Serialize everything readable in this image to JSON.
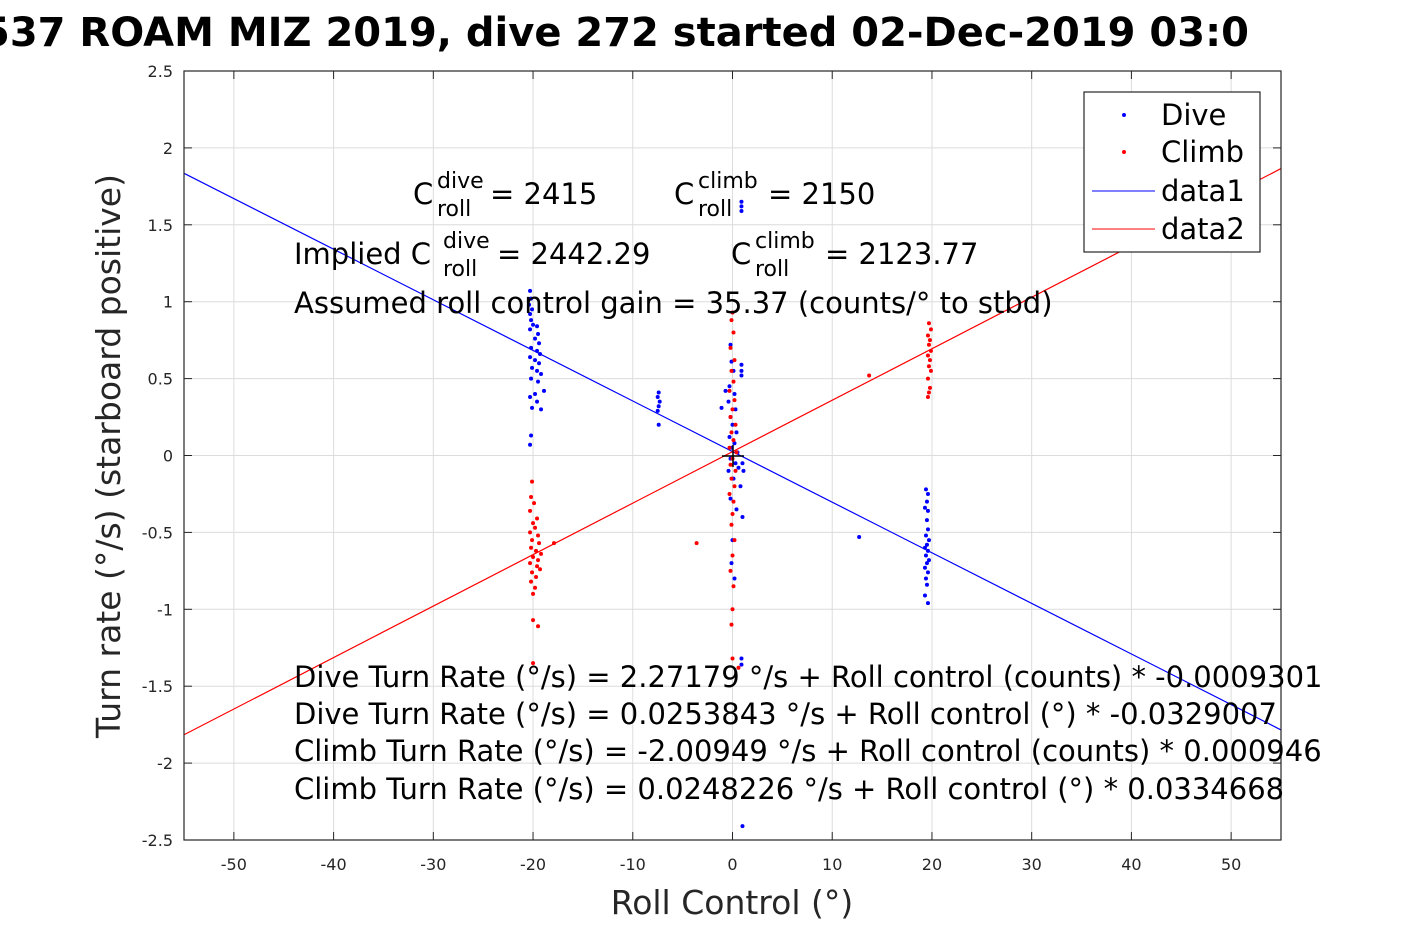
{
  "chart_data": {
    "type": "scatter",
    "title": "537 ROAM MIZ 2019, dive 272 started 02-Dec-2019 03:0",
    "xlabel": "Roll Control (°)",
    "ylabel": "Turn rate (°/s) (starboard positive)",
    "xlim": [
      -55,
      55
    ],
    "ylim": [
      -2.5,
      2.5
    ],
    "xticks": [
      -50,
      -40,
      -30,
      -20,
      -10,
      0,
      10,
      20,
      30,
      40,
      50
    ],
    "xtick_labels": [
      "-50",
      "-40",
      "-30",
      "-20",
      "-10",
      "0",
      "10",
      "20",
      "30",
      "40",
      "50"
    ],
    "yticks": [
      2.5,
      2,
      1.5,
      1,
      0.5,
      0,
      -0.5,
      -1,
      -1.5,
      -2,
      -2.5
    ],
    "ytick_labels": [
      "2.5",
      "2",
      "1.5",
      "1",
      "0.5",
      "0",
      "-0.5",
      "-1",
      "-1.5",
      "-2",
      "-2.5"
    ],
    "grid": true,
    "legend_position": "top-right",
    "series": [
      {
        "name": "Dive",
        "kind": "points",
        "color": "#0000ff",
        "points": [
          [
            -20.3,
            1.07
          ],
          [
            -20.2,
            1.02
          ],
          [
            -20.4,
            0.98
          ],
          [
            -20.1,
            0.95
          ],
          [
            -20.3,
            0.92
          ],
          [
            -20.2,
            0.88
          ],
          [
            -20.0,
            0.85
          ],
          [
            -20.3,
            0.82
          ],
          [
            -19.6,
            0.84
          ],
          [
            -19.5,
            0.79
          ],
          [
            -19.8,
            0.76
          ],
          [
            -19.4,
            0.73
          ],
          [
            -20.2,
            0.7
          ],
          [
            -19.6,
            0.68
          ],
          [
            -19.3,
            0.66
          ],
          [
            -20.3,
            0.64
          ],
          [
            -19.8,
            0.62
          ],
          [
            -19.4,
            0.6
          ],
          [
            -20.1,
            0.57
          ],
          [
            -19.6,
            0.55
          ],
          [
            -19.2,
            0.53
          ],
          [
            -20.2,
            0.5
          ],
          [
            -19.5,
            0.48
          ],
          [
            -18.9,
            0.42
          ],
          [
            -19.8,
            0.4
          ],
          [
            -20.3,
            0.38
          ],
          [
            -19.6,
            0.35
          ],
          [
            -20.1,
            0.31
          ],
          [
            -19.2,
            0.3
          ],
          [
            -20.2,
            0.13
          ],
          [
            -20.3,
            0.07
          ],
          [
            -7.4,
            0.41
          ],
          [
            -7.5,
            0.38
          ],
          [
            -7.3,
            0.35
          ],
          [
            -7.4,
            0.32
          ],
          [
            -7.5,
            0.29
          ],
          [
            -7.4,
            0.2
          ],
          [
            -1.1,
            0.31
          ],
          [
            -0.7,
            0.42
          ],
          [
            -0.2,
            0.72
          ],
          [
            -0.1,
            0.61
          ],
          [
            0.1,
            0.55
          ],
          [
            -0.3,
            0.45
          ],
          [
            0.2,
            0.4
          ],
          [
            -0.4,
            0.35
          ],
          [
            0.3,
            0.3
          ],
          [
            -0.2,
            0.25
          ],
          [
            0.0,
            0.2
          ],
          [
            0.4,
            0.15
          ],
          [
            -0.3,
            0.12
          ],
          [
            0.2,
            0.08
          ],
          [
            -0.1,
            0.05
          ],
          [
            0.5,
            0.02
          ],
          [
            -0.2,
            -0.02
          ],
          [
            0.3,
            -0.05
          ],
          [
            0.6,
            -0.08
          ],
          [
            -0.4,
            -0.1
          ],
          [
            0.1,
            -0.15
          ],
          [
            0.8,
            -0.2
          ],
          [
            -0.2,
            -0.28
          ],
          [
            0.4,
            -0.35
          ],
          [
            1.0,
            -0.4
          ],
          [
            0.0,
            -0.55
          ],
          [
            -0.1,
            -0.7
          ],
          [
            0.2,
            -0.8
          ],
          [
            0.9,
            1.65
          ],
          [
            0.9,
            1.62
          ],
          [
            0.9,
            1.59
          ],
          [
            0.9,
            0.59
          ],
          [
            0.9,
            0.55
          ],
          [
            0.9,
            0.52
          ],
          [
            1.0,
            -0.05
          ],
          [
            1.1,
            -0.1
          ],
          [
            0.9,
            -1.32
          ],
          [
            0.9,
            -1.36
          ],
          [
            1.0,
            -2.41
          ],
          [
            12.7,
            -0.53
          ],
          [
            19.4,
            -0.22
          ],
          [
            19.6,
            -0.25
          ],
          [
            19.5,
            -0.3
          ],
          [
            19.6,
            -0.36
          ],
          [
            19.3,
            -0.34
          ],
          [
            19.5,
            -0.42
          ],
          [
            19.6,
            -0.48
          ],
          [
            19.4,
            -0.52
          ],
          [
            19.7,
            -0.55
          ],
          [
            19.5,
            -0.58
          ],
          [
            19.3,
            -0.6
          ],
          [
            19.6,
            -0.62
          ],
          [
            19.4,
            -0.65
          ],
          [
            19.7,
            -0.68
          ],
          [
            19.5,
            -0.7
          ],
          [
            19.3,
            -0.73
          ],
          [
            19.6,
            -0.76
          ],
          [
            19.4,
            -0.8
          ],
          [
            19.5,
            -0.84
          ],
          [
            19.3,
            -0.91
          ],
          [
            19.6,
            -0.96
          ]
        ]
      },
      {
        "name": "Climb",
        "kind": "points",
        "color": "#ff0000",
        "points": [
          [
            -20.1,
            -0.17
          ],
          [
            -20.2,
            -0.27
          ],
          [
            -19.9,
            -0.31
          ],
          [
            -20.3,
            -0.36
          ],
          [
            -19.6,
            -0.41
          ],
          [
            -20.0,
            -0.44
          ],
          [
            -19.8,
            -0.47
          ],
          [
            -20.3,
            -0.5
          ],
          [
            -19.5,
            -0.52
          ],
          [
            -20.1,
            -0.55
          ],
          [
            -19.4,
            -0.57
          ],
          [
            -20.2,
            -0.6
          ],
          [
            -19.7,
            -0.62
          ],
          [
            -19.2,
            -0.64
          ],
          [
            -20.0,
            -0.66
          ],
          [
            -19.5,
            -0.68
          ],
          [
            -20.3,
            -0.7
          ],
          [
            -19.6,
            -0.72
          ],
          [
            -19.3,
            -0.74
          ],
          [
            -20.1,
            -0.76
          ],
          [
            -19.7,
            -0.79
          ],
          [
            -20.2,
            -0.82
          ],
          [
            -19.8,
            -0.86
          ],
          [
            -20.0,
            -0.9
          ],
          [
            -17.9,
            -0.57
          ],
          [
            -20.0,
            -1.07
          ],
          [
            -19.5,
            -1.11
          ],
          [
            -20.0,
            -1.35
          ],
          [
            -3.6,
            -0.57
          ],
          [
            0.0,
            0.93
          ],
          [
            -0.1,
            0.88
          ],
          [
            0.1,
            0.8
          ],
          [
            -0.2,
            0.7
          ],
          [
            0.2,
            0.62
          ],
          [
            -0.1,
            0.55
          ],
          [
            0.1,
            0.48
          ],
          [
            -0.3,
            0.42
          ],
          [
            0.2,
            0.36
          ],
          [
            0.0,
            0.3
          ],
          [
            -0.2,
            0.25
          ],
          [
            0.3,
            0.2
          ],
          [
            -0.1,
            0.15
          ],
          [
            0.1,
            0.1
          ],
          [
            -0.3,
            0.05
          ],
          [
            0.4,
            0.02
          ],
          [
            0.0,
            -0.02
          ],
          [
            -0.2,
            -0.06
          ],
          [
            0.3,
            -0.1
          ],
          [
            -0.1,
            -0.15
          ],
          [
            0.2,
            -0.2
          ],
          [
            -0.3,
            -0.25
          ],
          [
            0.1,
            -0.3
          ],
          [
            0.0,
            -0.38
          ],
          [
            -0.1,
            -0.45
          ],
          [
            0.2,
            -0.55
          ],
          [
            0.0,
            -0.65
          ],
          [
            -0.2,
            -0.75
          ],
          [
            0.1,
            -0.85
          ],
          [
            0.0,
            -1.0
          ],
          [
            -0.1,
            -1.1
          ],
          [
            0.0,
            -1.32
          ],
          [
            0.6,
            -1.38
          ],
          [
            13.7,
            0.52
          ],
          [
            19.7,
            0.86
          ],
          [
            19.9,
            0.82
          ],
          [
            19.6,
            0.78
          ],
          [
            19.8,
            0.75
          ],
          [
            19.7,
            0.72
          ],
          [
            19.9,
            0.68
          ],
          [
            19.6,
            0.65
          ],
          [
            19.8,
            0.62
          ],
          [
            19.7,
            0.58
          ],
          [
            19.9,
            0.55
          ],
          [
            19.6,
            0.5
          ],
          [
            19.8,
            0.44
          ],
          [
            19.7,
            0.41
          ],
          [
            19.6,
            0.38
          ]
        ]
      },
      {
        "name": "data1",
        "kind": "line",
        "color": "#0000ff",
        "intercept": 0.0253843,
        "slope": -0.0329007
      },
      {
        "name": "data2",
        "kind": "line",
        "color": "#ff0000",
        "intercept": 0.0248226,
        "slope": 0.0334668
      }
    ]
  },
  "annotations": {
    "c_dive_base": "C",
    "c_dive_sup": "dive",
    "c_dive_sub": "roll",
    "c_dive_value": " = 2415",
    "c_climb_base": "C",
    "c_climb_sup": "climb",
    "c_climb_sub": "roll",
    "c_climb_value": " = 2150",
    "implied_prefix": "Implied C",
    "implied_dive_sup": "dive",
    "implied_dive_sub": "roll",
    "implied_dive_value": " = 2442.29",
    "implied_climb_base": "C",
    "implied_climb_sup": "climb",
    "implied_climb_sub": "roll",
    "implied_climb_value": " = 2123.77",
    "gain_text": "Assumed roll control gain = 35.37 (counts/° to stbd)",
    "eq1": "Dive Turn Rate (°/s) = 2.27179 °/s + Roll control (counts) * -0.0009301",
    "eq2": "Dive Turn Rate (°/s) = 0.0253843 °/s + Roll control (°) * -0.0329007",
    "eq3": "Climb Turn Rate (°/s) = -2.00949 °/s + Roll control (counts) * 0.000946",
    "eq4": "Climb Turn Rate (°/s) = 0.0248226 °/s + Roll control (°) * 0.0334668"
  }
}
